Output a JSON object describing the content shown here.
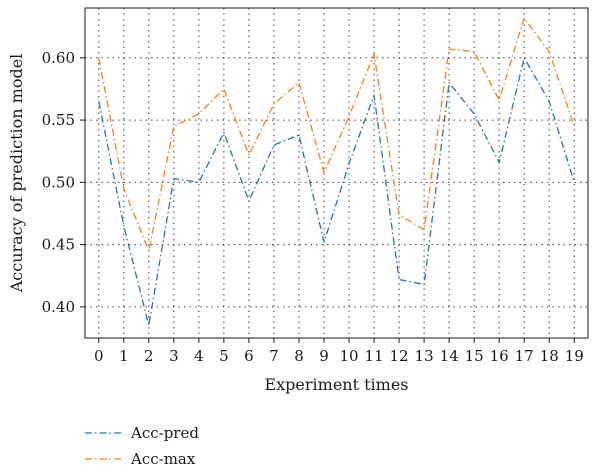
{
  "chart_data": {
    "type": "line",
    "x": [
      0,
      1,
      2,
      3,
      4,
      5,
      6,
      7,
      8,
      9,
      10,
      11,
      12,
      13,
      14,
      15,
      16,
      17,
      18,
      19
    ],
    "xlabel": "Experiment times",
    "ylabel": "Accuracy of prediction model",
    "xlim": [
      -0.55,
      19.55
    ],
    "ylim": [
      0.375,
      0.64
    ],
    "yticks": [
      0.4,
      0.45,
      0.5,
      0.55,
      0.6
    ],
    "ytick_labels": [
      "0.40",
      "0.45",
      "0.50",
      "0.55",
      "0.60"
    ],
    "grid": true,
    "legend_position": "bottom-left",
    "series": [
      {
        "name": "Acc-pred",
        "color": "#1f77b4",
        "line_style": "dash-dot",
        "values": [
          0.565,
          0.465,
          0.385,
          0.503,
          0.5,
          0.54,
          0.485,
          0.53,
          0.538,
          0.452,
          0.515,
          0.57,
          0.422,
          0.418,
          0.58,
          0.555,
          0.516,
          0.6,
          0.565,
          0.5
        ]
      },
      {
        "name": "Acc-max",
        "color": "#ff7f0e",
        "line_style": "dash-dot",
        "values": [
          0.6,
          0.495,
          0.445,
          0.545,
          0.555,
          0.575,
          0.522,
          0.563,
          0.58,
          0.508,
          0.553,
          0.603,
          0.474,
          0.462,
          0.607,
          0.605,
          0.566,
          0.632,
          0.605,
          0.545
        ]
      }
    ]
  }
}
